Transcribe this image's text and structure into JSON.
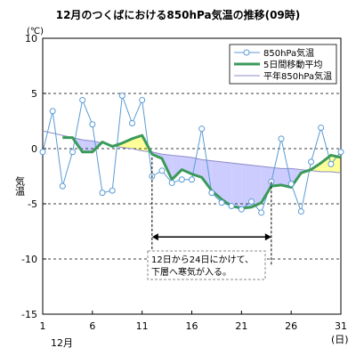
{
  "chart_data": {
    "type": "line",
    "title": "12月のつくばにおける850hPa気温の推移(09時)",
    "unit": "(℃)",
    "ylabel": "気温",
    "xlabel_month": "12月",
    "xlabel_unit": "(日)",
    "ylim": [
      -15,
      10
    ],
    "xlim": [
      1,
      31
    ],
    "yticks": [
      -15,
      -10,
      -5,
      0,
      5,
      10
    ],
    "xticks": [
      1,
      6,
      11,
      16,
      21,
      26,
      31
    ],
    "grid": "horizontal-dashed",
    "legend_position": "top-right",
    "x": [
      1,
      2,
      3,
      4,
      5,
      6,
      7,
      8,
      9,
      10,
      11,
      12,
      13,
      14,
      15,
      16,
      17,
      18,
      19,
      20,
      21,
      22,
      23,
      24,
      25,
      26,
      27,
      28,
      29,
      30,
      31
    ],
    "series": [
      {
        "name": "850hPa気温",
        "color": "#5a9bd5",
        "marker": "open-circle",
        "values": [
          -0.3,
          3.4,
          -3.4,
          -0.3,
          4.4,
          2.2,
          -4.0,
          -3.8,
          4.8,
          2.3,
          4.4,
          -2.5,
          -2.0,
          -3.1,
          -2.8,
          -2.8,
          1.8,
          -4.0,
          -4.9,
          -5.2,
          -5.5,
          -4.8,
          -5.8,
          -3.0,
          0.9,
          -3.2,
          -5.7,
          -1.2,
          1.9,
          -1.4,
          -0.3
        ]
      },
      {
        "name": "5日間移動平均",
        "color": "#3a9a5a",
        "values": [
          null,
          null,
          1.0,
          1.0,
          -0.3,
          -0.3,
          0.6,
          0.2,
          0.5,
          0.9,
          1.2,
          -0.5,
          -0.9,
          -2.8,
          -1.9,
          -2.3,
          -2.6,
          -3.8,
          -4.6,
          -5.2,
          -5.4,
          -5.3,
          -4.9,
          -3.4,
          -3.3,
          -3.5,
          -2.2,
          -1.9,
          -1.3,
          -0.6,
          -0.8
        ]
      },
      {
        "name": "平年850hPa気温",
        "color": "#8c8cc8",
        "values": [
          1.6,
          1.4,
          1.2,
          1.0,
          0.8,
          0.7,
          0.5,
          0.3,
          0.1,
          0.0,
          -0.2,
          -0.3,
          -0.5,
          -0.6,
          -0.7,
          -0.8,
          -1.0,
          -1.1,
          -1.2,
          -1.3,
          -1.4,
          -1.5,
          -1.6,
          -1.7,
          -1.8,
          -1.8,
          -1.9,
          -2.0,
          -2.1,
          -2.1,
          -2.2
        ]
      }
    ],
    "fill_colors": {
      "below_normal": "#ccccff",
      "above_normal": "#ffff99"
    },
    "annotation": {
      "text_line1": "12日から24日にかけて、",
      "text_line2": "下層へ寒気が入る。",
      "from_day": 12,
      "to_day": 24
    }
  }
}
